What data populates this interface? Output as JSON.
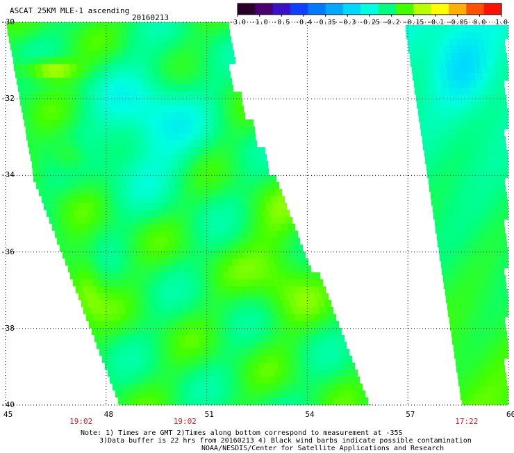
{
  "title": "ASCAT 25KM MLE-1 ascending",
  "date": "20160213",
  "colorbar": {
    "labels": [
      "-3.0",
      "-1.0",
      "-0.5",
      "-0.4",
      "-0.35",
      "-0.3",
      "-0.25",
      "-0.2",
      "-0.15",
      "-0.1",
      "-0.05",
      "0.0",
      "1.0"
    ],
    "colors": [
      "#2a0028",
      "#4a0070",
      "#3a10c8",
      "#1040ff",
      "#0078ff",
      "#00a8ff",
      "#00d8ff",
      "#00ffe0",
      "#00ff80",
      "#40ff00",
      "#b8ff00",
      "#ffff00",
      "#ffb000",
      "#ff5000",
      "#ff1000"
    ]
  },
  "map": {
    "lon_range": [
      45,
      60
    ],
    "lat_range": [
      -40,
      -30
    ],
    "x_ticks": [
      "45",
      "48",
      "51",
      "54",
      "57",
      "60"
    ],
    "y_ticks": [
      "-30",
      "-32",
      "-34",
      "-36",
      "-38",
      "-40"
    ],
    "swath_times": [
      {
        "lon": 47.2,
        "label": "19:02"
      },
      {
        "lon": 50.3,
        "label": "19:02"
      },
      {
        "lon": 58.7,
        "label": "17:22"
      }
    ],
    "grid": true
  },
  "notes": [
    "Note: 1) Times are GMT 2)Times along bottom correspond to measurement at -35S",
    "3)Data buffer is 22 hrs from 20160213 4) Black wind barbs indicate possible contamination",
    "NOAA/NESDIS/Center for Satellite Applications and Research"
  ],
  "icons": [
    "colorbar-legend",
    "swath-data-map"
  ]
}
